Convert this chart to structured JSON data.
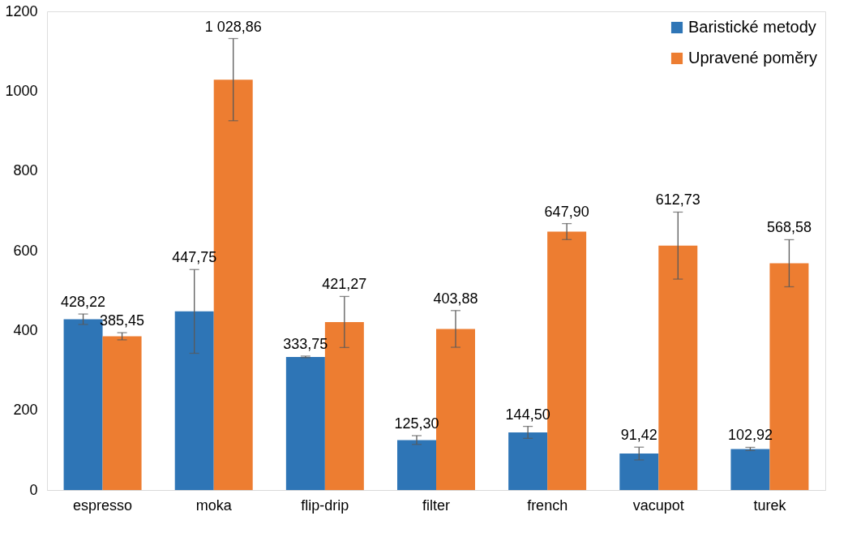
{
  "chart_data": {
    "type": "bar",
    "categories": [
      "espresso",
      "moka",
      "flip-drip",
      "filter",
      "french",
      "vacupot",
      "turek"
    ],
    "series": [
      {
        "name": "Baristické metody",
        "color": "#2e75b6",
        "values": [
          428.22,
          447.75,
          333.75,
          125.3,
          144.5,
          91.42,
          102.92
        ],
        "errors": [
          13,
          105,
          2,
          11,
          15,
          16,
          4
        ],
        "value_labels": [
          "428,22",
          "447,75",
          "333,75",
          "125,30",
          "144,50",
          "91,42",
          "102,92"
        ]
      },
      {
        "name": "Upravené poměry",
        "color": "#ed7d31",
        "values": [
          385.45,
          1028.86,
          421.27,
          403.88,
          647.9,
          612.73,
          568.58
        ],
        "errors": [
          9,
          103,
          64,
          46,
          20,
          84,
          59
        ],
        "value_labels": [
          "385,45",
          "1 028,86",
          "421,27",
          "403,88",
          "647,90",
          "612,73",
          "568,58"
        ]
      }
    ],
    "ylim": [
      0,
      1200
    ],
    "yticks": [
      0,
      200,
      400,
      600,
      800,
      1000,
      1200
    ],
    "grid": false,
    "legend": "top right"
  }
}
